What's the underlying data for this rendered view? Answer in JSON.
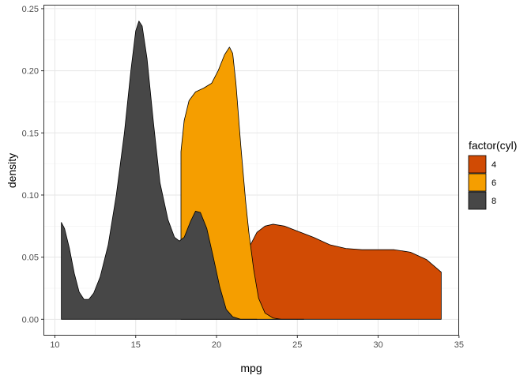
{
  "chart_data": {
    "type": "area",
    "subtype": "density",
    "xlabel": "mpg",
    "ylabel": "density",
    "xlim": [
      10.4,
      33.9
    ],
    "ylim": [
      0,
      0.25
    ],
    "x_ticks": [
      10,
      15,
      20,
      25,
      30,
      35
    ],
    "x_tick_labels": [
      "10",
      "15",
      "20",
      "25",
      "30",
      "35"
    ],
    "y_ticks": [
      0,
      0.05,
      0.1,
      0.15,
      0.2,
      0.25
    ],
    "y_tick_labels": [
      "0.00",
      "0.05",
      "0.10",
      "0.15",
      "0.20",
      "0.25"
    ],
    "grid": true,
    "legend": {
      "title": "factor(cyl)",
      "position": "right",
      "entries": [
        {
          "label": "4",
          "color": "#D14B04"
        },
        {
          "label": "6",
          "color": "#F59E00"
        },
        {
          "label": "8",
          "color": "#474747"
        }
      ]
    },
    "series": [
      {
        "name": "4",
        "color": "#D14B04",
        "points": [
          [
            21.4,
            0.0
          ],
          [
            21.6,
            0.01
          ],
          [
            21.8,
            0.035
          ],
          [
            22.1,
            0.06
          ],
          [
            22.5,
            0.07
          ],
          [
            23.0,
            0.075
          ],
          [
            23.5,
            0.0765
          ],
          [
            24.2,
            0.075
          ],
          [
            25.0,
            0.071
          ],
          [
            26.0,
            0.066
          ],
          [
            27.0,
            0.06
          ],
          [
            28.0,
            0.057
          ],
          [
            29.0,
            0.056
          ],
          [
            30.0,
            0.056
          ],
          [
            31.0,
            0.056
          ],
          [
            32.0,
            0.054
          ],
          [
            33.0,
            0.048
          ],
          [
            33.9,
            0.038
          ],
          [
            33.9,
            0.0
          ]
        ]
      },
      {
        "name": "6",
        "color": "#F59E00",
        "points": [
          [
            17.8,
            0.0
          ],
          [
            17.8,
            0.135
          ],
          [
            18.0,
            0.16
          ],
          [
            18.3,
            0.176
          ],
          [
            18.7,
            0.183
          ],
          [
            19.2,
            0.186
          ],
          [
            19.7,
            0.19
          ],
          [
            20.1,
            0.2
          ],
          [
            20.5,
            0.213
          ],
          [
            20.8,
            0.219
          ],
          [
            21.0,
            0.214
          ],
          [
            21.2,
            0.19
          ],
          [
            21.5,
            0.14
          ],
          [
            21.8,
            0.095
          ],
          [
            22.0,
            0.07
          ],
          [
            22.3,
            0.04
          ],
          [
            22.6,
            0.017
          ],
          [
            23.0,
            0.005
          ],
          [
            23.5,
            0.001
          ],
          [
            24.0,
            0.0
          ],
          [
            25.4,
            0.0
          ],
          [
            25.4,
            0.0
          ]
        ]
      },
      {
        "name": "8",
        "color": "#474747",
        "points": [
          [
            10.4,
            0.0
          ],
          [
            10.4,
            0.078
          ],
          [
            10.6,
            0.073
          ],
          [
            10.9,
            0.057
          ],
          [
            11.2,
            0.037
          ],
          [
            11.5,
            0.022
          ],
          [
            11.8,
            0.016
          ],
          [
            12.1,
            0.016
          ],
          [
            12.4,
            0.021
          ],
          [
            12.8,
            0.034
          ],
          [
            13.3,
            0.06
          ],
          [
            13.8,
            0.1
          ],
          [
            14.3,
            0.15
          ],
          [
            14.7,
            0.2
          ],
          [
            15.0,
            0.232
          ],
          [
            15.2,
            0.24
          ],
          [
            15.4,
            0.236
          ],
          [
            15.7,
            0.21
          ],
          [
            16.1,
            0.158
          ],
          [
            16.5,
            0.11
          ],
          [
            17.0,
            0.08
          ],
          [
            17.4,
            0.066
          ],
          [
            17.7,
            0.063
          ],
          [
            18.0,
            0.066
          ],
          [
            18.4,
            0.079
          ],
          [
            18.7,
            0.087
          ],
          [
            19.0,
            0.086
          ],
          [
            19.4,
            0.073
          ],
          [
            19.8,
            0.05
          ],
          [
            20.2,
            0.026
          ],
          [
            20.6,
            0.008
          ],
          [
            21.0,
            0.002
          ],
          [
            21.5,
            0.0
          ],
          [
            22.5,
            0.0
          ]
        ]
      }
    ]
  }
}
